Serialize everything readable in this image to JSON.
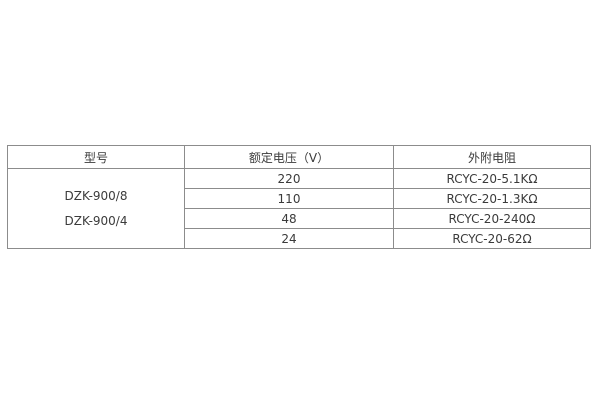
{
  "page": {
    "background": "#ffffff"
  },
  "table": {
    "border_color": "#8c8c8c",
    "text_color": "#3b3b3b",
    "headers": [
      "型号",
      "额定电压（V）",
      "外附电阻"
    ],
    "models": [
      "DZK-900/8",
      "DZK-900/4"
    ],
    "rows": [
      {
        "voltage": "220",
        "resistance": "RCYC-20-5.1KΩ"
      },
      {
        "voltage": "110",
        "resistance": "RCYC-20-1.3KΩ"
      },
      {
        "voltage": "48",
        "resistance": "RCYC-20-240Ω"
      },
      {
        "voltage": "24",
        "resistance": "RCYC-20-62Ω"
      }
    ]
  }
}
